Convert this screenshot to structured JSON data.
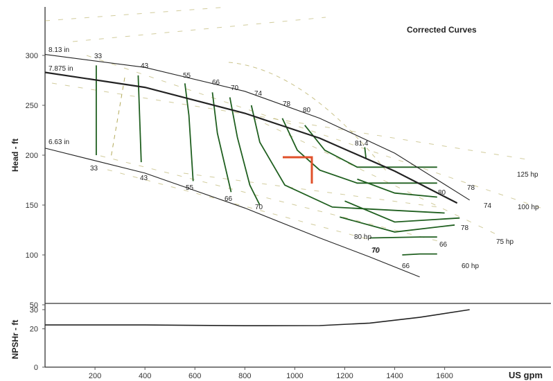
{
  "chart_data": {
    "type": "line",
    "title": "Corrected Curves",
    "xlabel": "US gpm",
    "x_ticks": [
      "200",
      "400",
      "600",
      "800",
      "1000",
      "1200",
      "1400",
      "1600"
    ],
    "xlim": [
      0,
      1800
    ],
    "head_panel": {
      "ylabel": "Head - ft",
      "y_ticks": [
        "50",
        "100",
        "150",
        "200",
        "250",
        "300"
      ],
      "ylim": [
        50,
        350
      ],
      "impeller_curves": [
        {
          "name": "8.13 in",
          "x": [
            0,
            400,
            800,
            1100,
            1400,
            1700
          ],
          "y": [
            301,
            288,
            264,
            237,
            202,
            155
          ]
        },
        {
          "name": "7.875 in",
          "x": [
            0,
            400,
            800,
            1100,
            1400,
            1650
          ],
          "y": [
            283,
            268,
            242,
            217,
            184,
            152
          ]
        },
        {
          "name": "6.63 in",
          "x": [
            0,
            400,
            800,
            1100,
            1300,
            1500
          ],
          "y": [
            207,
            182,
            147,
            117,
            98,
            78
          ]
        }
      ],
      "efficiency_lines": [
        {
          "name": "33",
          "x": [
            205,
            205
          ],
          "y": [
            290,
            200
          ]
        },
        {
          "name": "43",
          "x": [
            373,
            385
          ],
          "y": [
            280,
            193
          ]
        },
        {
          "name": "55",
          "x": [
            560,
            576,
            593
          ],
          "y": [
            272,
            240,
            174
          ]
        },
        {
          "name": "66",
          "x": [
            670,
            690,
            745
          ],
          "y": [
            263,
            222,
            163
          ]
        },
        {
          "name": "70",
          "x": [
            740,
            770,
            820,
            860
          ],
          "y": [
            258,
            218,
            170,
            150
          ]
        },
        {
          "name": "74",
          "x": [
            826,
            860,
            960,
            1150,
            1600
          ],
          "y": [
            250,
            213,
            170,
            148,
            142
          ]
        },
        {
          "name": "78",
          "x": [
            950,
            1010,
            1100,
            1250,
            1570
          ],
          "y": [
            237,
            205,
            185,
            172,
            172
          ]
        },
        {
          "name": "80",
          "x": [
            1040,
            1120,
            1250,
            1570
          ],
          "y": [
            230,
            205,
            188,
            188
          ]
        },
        {
          "name": "81.4",
          "x": [
            1280,
            1285
          ],
          "y": [
            208,
            197
          ]
        },
        {
          "name": "80",
          "x": [
            1250,
            1400,
            1570
          ],
          "y": [
            176,
            162,
            158
          ]
        },
        {
          "name": "78",
          "x": [
            1200,
            1400,
            1660
          ],
          "y": [
            154,
            133,
            137
          ]
        },
        {
          "name": "74",
          "x": [
            1180,
            1400,
            1640
          ],
          "y": [
            138,
            123,
            130
          ]
        },
        {
          "name": "70",
          "x": [
            1300,
            1500,
            1570
          ],
          "y": [
            117,
            118,
            118
          ]
        },
        {
          "name": "66",
          "x": [
            1430,
            1500,
            1570
          ],
          "y": [
            100,
            101,
            101
          ]
        }
      ],
      "power_lines": [
        {
          "name": "125 hp"
        },
        {
          "name": "100 hp"
        },
        {
          "name": "75 hp"
        },
        {
          "name": "60 hp"
        }
      ],
      "operating_point": {
        "x": [
          1050,
          1050
        ],
        "y": [
          200,
          172
        ]
      }
    },
    "npshr_panel": {
      "ylabel": "NPSHr - ft",
      "y_ticks": [
        "0",
        "20",
        "30"
      ],
      "ylim": [
        0,
        30
      ],
      "series": [
        {
          "x": [
            0,
            400,
            800,
            1100,
            1300,
            1500,
            1700
          ],
          "y": [
            22,
            22,
            21.6,
            21.7,
            23,
            26,
            30
          ]
        }
      ]
    },
    "annotations": {
      "impeller_labels": [
        "8.13 in",
        "7.875 in",
        "6.63 in"
      ],
      "eff_top": [
        "33",
        "43",
        "55",
        "66",
        "70",
        "74",
        "78",
        "80",
        "81.4"
      ],
      "eff_bottom": [
        "33",
        "43",
        "55",
        "66",
        "70"
      ],
      "eff_right": [
        "78",
        "80",
        "74",
        "78",
        "70",
        "66",
        "80 hp",
        "70",
        "66"
      ],
      "power": [
        "125 hp",
        "100 hp",
        "75 hp",
        "60 hp"
      ]
    },
    "colors": {
      "curve": "#222222",
      "efficiency": "#1f5f1f",
      "power": "#b3aa5a",
      "operating_point": "#e0502a"
    }
  }
}
